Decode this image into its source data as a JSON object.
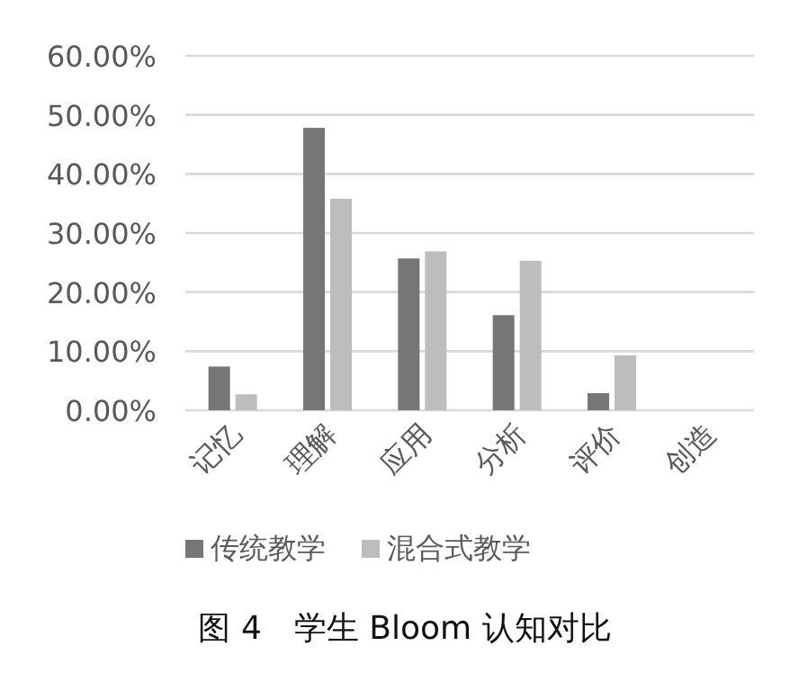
{
  "chart_data": {
    "type": "bar",
    "title": "图 4　学生 Bloom 认知对比",
    "categories": [
      "记忆",
      "理解",
      "应用",
      "分析",
      "评价",
      "创造"
    ],
    "series": [
      {
        "name": "传统教学",
        "color": "#767676",
        "values": [
          7.4,
          47.8,
          25.7,
          16.1,
          2.9,
          0
        ]
      },
      {
        "name": "混合式教学",
        "color": "#bdbdbd",
        "values": [
          2.7,
          35.8,
          26.9,
          25.3,
          9.3,
          0
        ]
      }
    ],
    "ylim": [
      0,
      60
    ],
    "yticks": [
      {
        "value": 0,
        "label": "0.00%"
      },
      {
        "value": 10,
        "label": "10.00%"
      },
      {
        "value": 20,
        "label": "20.00%"
      },
      {
        "value": 30,
        "label": "30.00%"
      },
      {
        "value": 40,
        "label": "40.00%"
      },
      {
        "value": 50,
        "label": "50.00%"
      },
      {
        "value": 60,
        "label": "60.00%"
      }
    ],
    "grid": "y",
    "legend": "bottom"
  }
}
